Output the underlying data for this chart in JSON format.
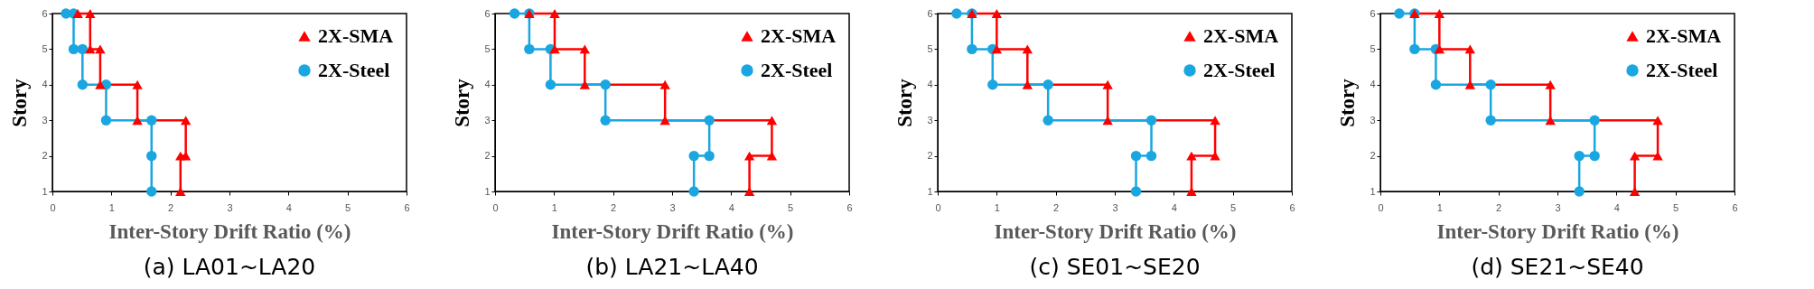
{
  "chart_data": [
    {
      "type": "line",
      "title": "(a) LA01~LA20",
      "xlabel": "Inter-Story Drift Ratio (%)",
      "ylabel": "Story",
      "xlim": [
        0,
        6
      ],
      "xticks": [
        0,
        1,
        2,
        3,
        4,
        5,
        6
      ],
      "ylim": [
        1,
        6
      ],
      "yticks": [
        1,
        2,
        3,
        4,
        5,
        6
      ],
      "legend": "top right",
      "grid": false,
      "series": [
        {
          "name": "2X-SMA",
          "color": "#ff0000",
          "marker": "triangle",
          "x": [
            2.17,
            2.17,
            2.26,
            2.26,
            1.44,
            1.44,
            0.81,
            0.81,
            0.64,
            0.64,
            0.43
          ],
          "values": [
            1,
            2,
            2,
            3,
            3,
            4,
            4,
            5,
            5,
            6,
            6
          ]
        },
        {
          "name": "2X-Steel",
          "color": "#1aa6e0",
          "marker": "circle",
          "x": [
            1.68,
            1.68,
            1.68,
            0.91,
            0.91,
            0.51,
            0.51,
            0.36,
            0.36,
            0.23
          ],
          "values": [
            1,
            2,
            3,
            3,
            4,
            4,
            5,
            5,
            6,
            6
          ]
        }
      ]
    },
    {
      "type": "line",
      "title": "(b) LA21~LA40",
      "xlabel": "Inter-Story Drift Ratio (%)",
      "ylabel": "Story",
      "xlim": [
        0,
        6
      ],
      "xticks": [
        0,
        1,
        2,
        3,
        4,
        5,
        6
      ],
      "ylim": [
        1,
        6
      ],
      "yticks": [
        1,
        2,
        3,
        4,
        5,
        6
      ],
      "legend": "top right",
      "grid": false,
      "series": [
        {
          "name": "2X-SMA",
          "color": "#ff0000",
          "marker": "triangle",
          "x": [
            4.31,
            4.31,
            4.69,
            4.69,
            2.88,
            2.88,
            1.52,
            1.52,
            1.01,
            1.01,
            0.58
          ],
          "values": [
            1,
            2,
            2,
            3,
            3,
            4,
            4,
            5,
            5,
            6,
            6
          ]
        },
        {
          "name": "2X-Steel",
          "color": "#1aa6e0",
          "marker": "circle",
          "x": [
            3.37,
            3.37,
            3.63,
            3.63,
            1.87,
            1.87,
            0.94,
            0.94,
            0.58,
            0.58,
            0.33
          ],
          "values": [
            1,
            2,
            2,
            3,
            3,
            4,
            4,
            5,
            5,
            6,
            6
          ]
        }
      ]
    },
    {
      "type": "line",
      "title": "(c) SE01~SE20",
      "xlabel": "Inter-Story Drift Ratio (%)",
      "ylabel": "Story",
      "xlim": [
        0,
        6
      ],
      "xticks": [
        0,
        1,
        2,
        3,
        4,
        5,
        6
      ],
      "ylim": [
        1,
        6
      ],
      "yticks": [
        1,
        2,
        3,
        4,
        5,
        6
      ],
      "legend": "top right",
      "grid": false,
      "series": [
        {
          "name": "2X-SMA",
          "color": "#ff0000",
          "marker": "triangle",
          "x": [
            4.3,
            4.3,
            4.7,
            4.7,
            2.88,
            2.88,
            1.52,
            1.52,
            1.0,
            1.0,
            0.58
          ],
          "values": [
            1,
            2,
            2,
            3,
            3,
            4,
            4,
            5,
            5,
            6,
            6
          ]
        },
        {
          "name": "2X-Steel",
          "color": "#1aa6e0",
          "marker": "circle",
          "x": [
            3.36,
            3.36,
            3.62,
            3.62,
            1.87,
            1.87,
            0.93,
            0.93,
            0.58,
            0.58,
            0.32
          ],
          "values": [
            1,
            2,
            2,
            3,
            3,
            4,
            4,
            5,
            5,
            6,
            6
          ]
        }
      ]
    },
    {
      "type": "line",
      "title": "(d) SE21~SE40",
      "xlabel": "Inter-Story Drift Ratio (%)",
      "ylabel": "Story",
      "xlim": [
        0,
        6
      ],
      "xticks": [
        0,
        1,
        2,
        3,
        4,
        5,
        6
      ],
      "ylim": [
        1,
        6
      ],
      "yticks": [
        1,
        2,
        3,
        4,
        5,
        6
      ],
      "legend": "top right",
      "grid": false,
      "series": [
        {
          "name": "2X-SMA",
          "color": "#ff0000",
          "marker": "triangle",
          "x": [
            4.31,
            4.31,
            4.7,
            4.7,
            2.88,
            2.88,
            1.52,
            1.52,
            1.0,
            1.0,
            0.58
          ],
          "values": [
            1,
            2,
            2,
            3,
            3,
            4,
            4,
            5,
            5,
            6,
            6
          ]
        },
        {
          "name": "2X-Steel",
          "color": "#1aa6e0",
          "marker": "circle",
          "x": [
            3.37,
            3.37,
            3.63,
            3.63,
            1.87,
            1.87,
            0.94,
            0.94,
            0.58,
            0.58,
            0.32
          ],
          "values": [
            1,
            2,
            2,
            3,
            3,
            4,
            4,
            5,
            5,
            6,
            6
          ]
        }
      ]
    }
  ]
}
